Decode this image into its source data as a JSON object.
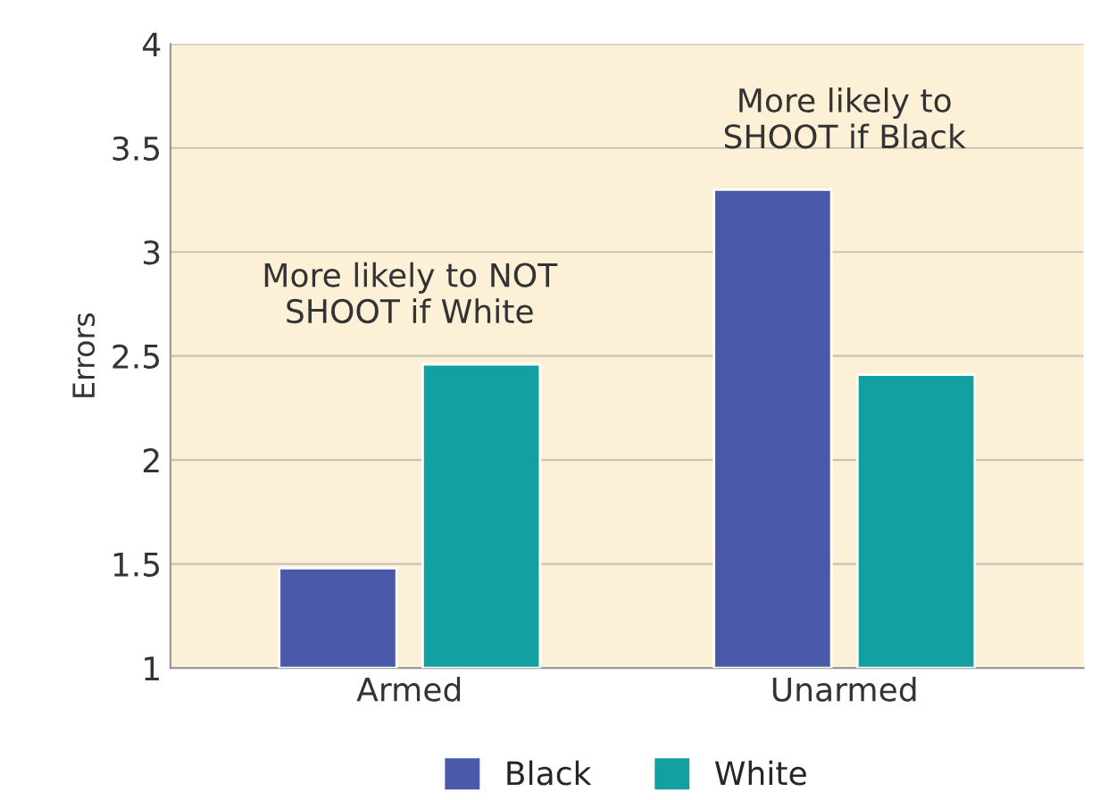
{
  "chart_data": {
    "type": "bar",
    "ylabel": "Errors",
    "categories": [
      "Armed",
      "Unarmed"
    ],
    "series": [
      {
        "name": "Black",
        "color": "#4a5aa8",
        "values": [
          1.48,
          3.3
        ]
      },
      {
        "name": "White",
        "color": "#13a0a0",
        "values": [
          2.46,
          2.41
        ]
      }
    ],
    "ylim": [
      1,
      4
    ],
    "yticks": [
      1,
      1.5,
      2,
      2.5,
      3,
      3.5,
      4
    ],
    "grid": "y",
    "legend": "bottom",
    "annotations": [
      "More likely to NOT\nSHOOT if White",
      "More likely to\nSHOOT if Black"
    ]
  }
}
